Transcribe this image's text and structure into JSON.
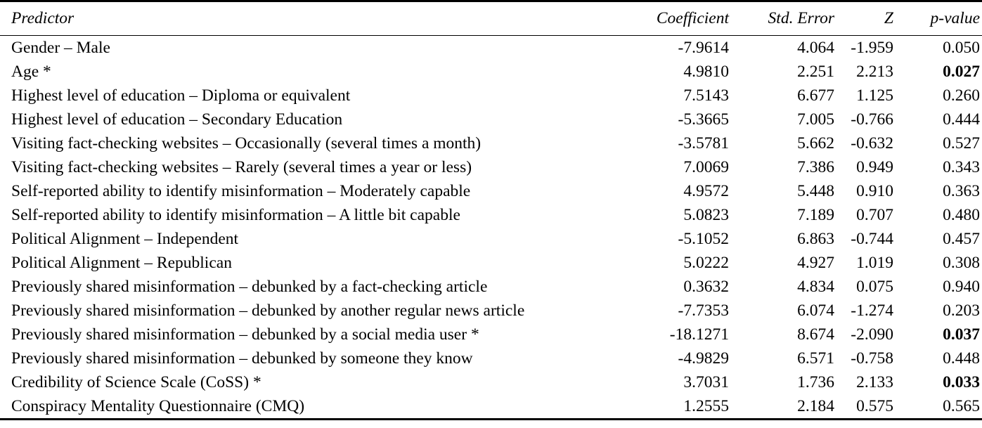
{
  "style": {
    "background": "#ffffff",
    "text_color": "#000000",
    "rule_color": "#000000"
  },
  "table": {
    "columns": [
      {
        "key": "predictor",
        "label": "Predictor"
      },
      {
        "key": "coefficient",
        "label": "Coefficient"
      },
      {
        "key": "std_error",
        "label": "Std. Error"
      },
      {
        "key": "z",
        "label": "Z"
      },
      {
        "key": "p_value",
        "label": "p-value"
      }
    ],
    "rows": [
      {
        "predictor": "Gender – Male",
        "coefficient": "-7.9614",
        "std_error": "4.064",
        "z": "-1.959",
        "p_value": "0.050",
        "significant": false
      },
      {
        "predictor": "Age *",
        "coefficient": "4.9810",
        "std_error": "2.251",
        "z": "2.213",
        "p_value": "0.027",
        "significant": true
      },
      {
        "predictor": "Highest level of education – Diploma or equivalent",
        "coefficient": "7.5143",
        "std_error": "6.677",
        "z": "1.125",
        "p_value": "0.260",
        "significant": false
      },
      {
        "predictor": "Highest level of education – Secondary Education",
        "coefficient": "-5.3665",
        "std_error": "7.005",
        "z": "-0.766",
        "p_value": "0.444",
        "significant": false
      },
      {
        "predictor": "Visiting fact-checking websites – Occasionally (several times a month)",
        "coefficient": "-3.5781",
        "std_error": "5.662",
        "z": "-0.632",
        "p_value": "0.527",
        "significant": false
      },
      {
        "predictor": "Visiting fact-checking websites – Rarely (several times a year or less)",
        "coefficient": "7.0069",
        "std_error": "7.386",
        "z": "0.949",
        "p_value": "0.343",
        "significant": false
      },
      {
        "predictor": "Self-reported ability to identify misinformation – Moderately capable",
        "coefficient": "4.9572",
        "std_error": "5.448",
        "z": "0.910",
        "p_value": "0.363",
        "significant": false
      },
      {
        "predictor": "Self-reported ability to identify misinformation – A little bit capable",
        "coefficient": "5.0823",
        "std_error": "7.189",
        "z": "0.707",
        "p_value": "0.480",
        "significant": false
      },
      {
        "predictor": "Political Alignment – Independent",
        "coefficient": "-5.1052",
        "std_error": "6.863",
        "z": "-0.744",
        "p_value": "0.457",
        "significant": false
      },
      {
        "predictor": "Political Alignment – Republican",
        "coefficient": "5.0222",
        "std_error": "4.927",
        "z": "1.019",
        "p_value": "0.308",
        "significant": false
      },
      {
        "predictor": "Previously shared misinformation – debunked by a fact-checking article",
        "coefficient": "0.3632",
        "std_error": "4.834",
        "z": "0.075",
        "p_value": "0.940",
        "significant": false
      },
      {
        "predictor": "Previously shared misinformation – debunked by another regular news article",
        "coefficient": "-7.7353",
        "std_error": "6.074",
        "z": "-1.274",
        "p_value": "0.203",
        "significant": false
      },
      {
        "predictor": "Previously shared misinformation – debunked by a social media user *",
        "coefficient": "-18.1271",
        "std_error": "8.674",
        "z": "-2.090",
        "p_value": "0.037",
        "significant": true
      },
      {
        "predictor": "Previously shared misinformation – debunked by someone they know",
        "coefficient": "-4.9829",
        "std_error": "6.571",
        "z": "-0.758",
        "p_value": "0.448",
        "significant": false
      },
      {
        "predictor": "Credibility of Science Scale (CoSS) *",
        "coefficient": "3.7031",
        "std_error": "1.736",
        "z": "2.133",
        "p_value": "0.033",
        "significant": true
      },
      {
        "predictor": "Conspiracy Mentality Questionnaire (CMQ)",
        "coefficient": "1.2555",
        "std_error": "2.184",
        "z": "0.575",
        "p_value": "0.565",
        "significant": false
      }
    ]
  }
}
